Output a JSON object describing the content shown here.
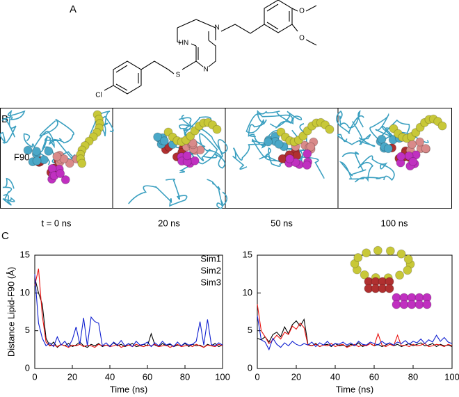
{
  "panels": {
    "a": "A",
    "b": "B",
    "c": "C"
  },
  "structure_labels": [
    "HN",
    "N",
    "N",
    "S",
    "Cl",
    "O",
    "O"
  ],
  "residue_label": "F90",
  "frame_labels": [
    "t = 0 ns",
    "20 ns",
    "50 ns",
    "100 ns"
  ],
  "chart_data": [
    {
      "type": "line",
      "xlabel": "Time (ns)",
      "ylabel": "Distance Lipid-F90 (Å)",
      "x": [
        0,
        2,
        4,
        6,
        8,
        10,
        12,
        14,
        16,
        18,
        20,
        22,
        24,
        26,
        28,
        30,
        32,
        34,
        36,
        38,
        40,
        42,
        44,
        46,
        48,
        50,
        52,
        54,
        56,
        58,
        60,
        62,
        64,
        66,
        68,
        70,
        72,
        74,
        76,
        78,
        80,
        82,
        84,
        86,
        88,
        90,
        92,
        94,
        96,
        98,
        100
      ],
      "xlim": [
        0,
        100
      ],
      "ylim": [
        0,
        15
      ],
      "xticks": [
        0,
        20,
        40,
        60,
        80,
        100
      ],
      "yticks": [
        0,
        5,
        10,
        15
      ],
      "legend": "upper right",
      "series": [
        {
          "name": "Sim1",
          "color": "#000000",
          "values": [
            12,
            10,
            8.5,
            4,
            3,
            3.5,
            2.8,
            3.2,
            3,
            3.3,
            2.9,
            3.1,
            3.5,
            3,
            2.8,
            3.2,
            3,
            3.3,
            2.9,
            3.1,
            3,
            3.4,
            3,
            3.2,
            2.9,
            3.1,
            3.3,
            2.9,
            3,
            3.2,
            3,
            4.6,
            3.1,
            2.9,
            3.3,
            3,
            3.2,
            2.9,
            3.1,
            3,
            3.3,
            2.9,
            3.2,
            3,
            3.1,
            2.8,
            3.2,
            3,
            3.3,
            2.9,
            3.1
          ]
        },
        {
          "name": "Sim2",
          "color": "#e8100e",
          "values": [
            11,
            13.2,
            7,
            3.5,
            3,
            3.1,
            2.9,
            3.2,
            3,
            2.8,
            3.1,
            3,
            3.2,
            2.9,
            3.1,
            3,
            2.8,
            3.2,
            3,
            3.1,
            2.9,
            3,
            3.2,
            2.8,
            3,
            3.1,
            2.9,
            3.2,
            3,
            2.9,
            3.1,
            3,
            3.2,
            2.9,
            3,
            3.1,
            2.8,
            3,
            3.2,
            2.9,
            3,
            3.1,
            2.9,
            3.2,
            3,
            2.8,
            3.1,
            3,
            2.9,
            3.2,
            3
          ]
        },
        {
          "name": "Sim3",
          "color": "#1020d0",
          "values": [
            12.5,
            6,
            4,
            3,
            3.4,
            2.9,
            4.2,
            3.1,
            3.6,
            2.9,
            3.8,
            5.5,
            3.2,
            6.7,
            3,
            6.8,
            6.2,
            6,
            3,
            3.4,
            2.9,
            3.5,
            3.1,
            3.7,
            3,
            3.3,
            2.9,
            3.6,
            3.1,
            3.2,
            3.5,
            2.9,
            3.4,
            3,
            3.6,
            3.1,
            3.3,
            2.9,
            3.5,
            3,
            3.4,
            3.1,
            3.2,
            3.6,
            6.2,
            3.1,
            6.5,
            3.2,
            3,
            3.4,
            3.1
          ]
        }
      ]
    },
    {
      "type": "line",
      "xlabel": "Time (ns)",
      "x": [
        0,
        2,
        4,
        6,
        8,
        10,
        12,
        14,
        16,
        18,
        20,
        22,
        24,
        26,
        28,
        30,
        32,
        34,
        36,
        38,
        40,
        42,
        44,
        46,
        48,
        50,
        52,
        54,
        56,
        58,
        60,
        62,
        64,
        66,
        68,
        70,
        72,
        74,
        76,
        78,
        80,
        82,
        84,
        86,
        88,
        90,
        92,
        94,
        96,
        98,
        100
      ],
      "xlim": [
        0,
        100
      ],
      "ylim": [
        0,
        15
      ],
      "xticks": [
        0,
        20,
        40,
        60,
        80,
        100
      ],
      "yticks": [
        0,
        5,
        10,
        15
      ],
      "series": [
        {
          "color": "#000000",
          "values": [
            4,
            3.8,
            4.2,
            3.5,
            4.5,
            4.8,
            4.2,
            5.5,
            4.6,
            5.8,
            6.3,
            5.6,
            6.5,
            3.2,
            3,
            3.3,
            2.9,
            3.1,
            3.2,
            2.9,
            3.3,
            3,
            3.1,
            2.9,
            3.2,
            3,
            3.4,
            2.9,
            3.1,
            3.3,
            3,
            3.2,
            2.9,
            3.1,
            3.4,
            3,
            3.2,
            2.9,
            3.1,
            3.3,
            3,
            3.2,
            3.4,
            3,
            3.1,
            3.3,
            2.9,
            3.2,
            3,
            3.1,
            2.9
          ]
        },
        {
          "color": "#e8100e",
          "values": [
            8.5,
            5,
            4.2,
            3.3,
            3.8,
            4.4,
            3.9,
            4.8,
            4.5,
            5.6,
            5.2,
            6,
            5.4,
            3.1,
            3,
            3.2,
            2.9,
            3.1,
            3,
            3.3,
            2.9,
            3.1,
            3.2,
            2.8,
            3,
            3.2,
            2.9,
            3.1,
            3,
            3.3,
            3,
            4.6,
            3.1,
            2.9,
            3.2,
            3,
            4.4,
            3,
            3.1,
            2.9,
            3.2,
            3,
            3.1,
            3.3,
            2.9,
            3,
            3.2,
            3.1,
            2.9,
            3.2,
            3
          ]
        },
        {
          "color": "#1020d0",
          "values": [
            7,
            3.8,
            3.5,
            2.5,
            4,
            3.2,
            2.8,
            3.4,
            3,
            3.6,
            3.2,
            3,
            3.3,
            3.1,
            3.5,
            2.9,
            3.4,
            3.1,
            3.6,
            3,
            3.3,
            3.2,
            3.5,
            3.1,
            3.4,
            3,
            3.6,
            3.2,
            3.1,
            3.5,
            3.3,
            3.1,
            3.6,
            3.2,
            3.4,
            3.1,
            3.5,
            3.3,
            3.7,
            3.2,
            3.6,
            3.4,
            3.9,
            3.3,
            3.8,
            3.5,
            4.4,
            3.6,
            4.1,
            3.5,
            3.3
          ]
        }
      ]
    }
  ]
}
